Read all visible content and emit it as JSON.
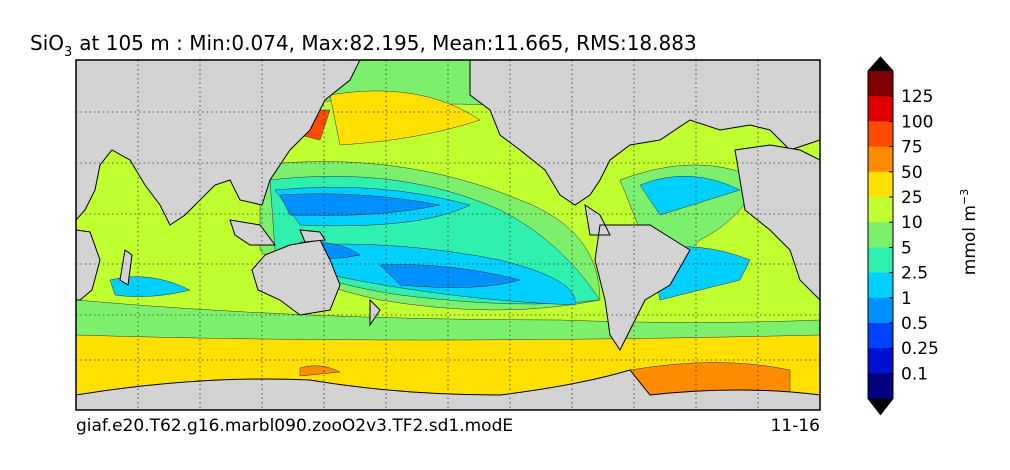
{
  "title": {
    "species": "SiO",
    "subscript": "3",
    "text": "at 105 m : Min:0.074, Max:82.195, Mean:11.665, RMS:18.883"
  },
  "colorbar": {
    "label": "mmol m",
    "label_exponent": "−3",
    "ticks": [
      "125",
      "100",
      "75",
      "50",
      "25",
      "10",
      "5",
      "2.5",
      "1",
      "0.5",
      "0.25",
      "0.1"
    ],
    "colors": [
      "#7f0000",
      "#e00000",
      "#ff4a00",
      "#ff8c00",
      "#ffe000",
      "#c0ff30",
      "#7cf06c",
      "#30f0b0",
      "#00d0ff",
      "#0090ff",
      "#0040ff",
      "#0010d0",
      "#00007f"
    ],
    "over_color": "#000000",
    "under_color": "#000000"
  },
  "footer": {
    "case": "giaf.e20.T62.g16.marbl090.zooO2v3.TF2.sd1.modE",
    "years": "11-16"
  }
}
